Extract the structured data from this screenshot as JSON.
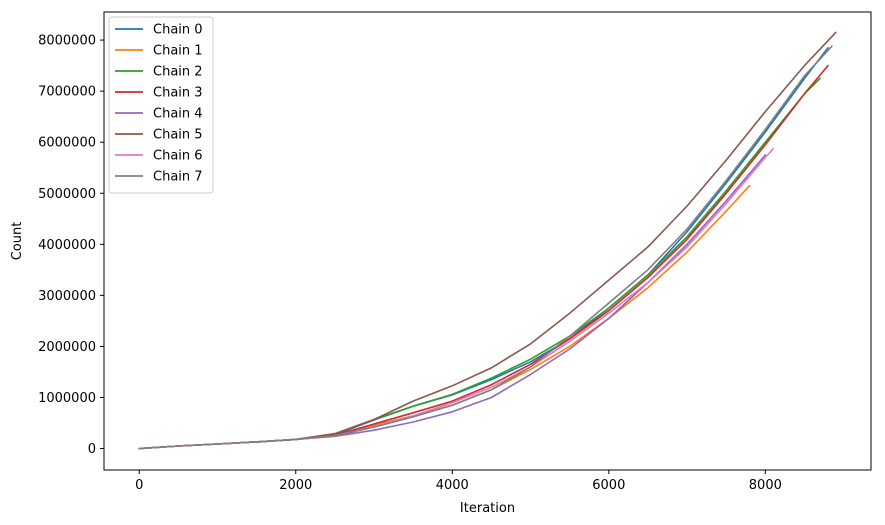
{
  "chart_data": {
    "type": "line",
    "title": "",
    "xlabel": "Iteration",
    "ylabel": "Count",
    "xlim": [
      -450,
      9350
    ],
    "ylim": [
      -420000,
      8550000
    ],
    "xticks": [
      0,
      2000,
      4000,
      6000,
      8000
    ],
    "xtick_labels": [
      "0",
      "2000",
      "4000",
      "6000",
      "8000"
    ],
    "yticks": [
      0,
      1000000,
      2000000,
      3000000,
      4000000,
      5000000,
      6000000,
      7000000,
      8000000
    ],
    "ytick_labels": [
      "0",
      "1000000",
      "2000000",
      "3000000",
      "4000000",
      "5000000",
      "6000000",
      "7000000",
      "8000000"
    ],
    "grid": false,
    "legend_position": "top-left",
    "series": [
      {
        "name": "Chain 0",
        "color": "#1f77b4",
        "x": [
          0,
          500,
          1000,
          1500,
          2000,
          2500,
          3000,
          3500,
          4000,
          4500,
          5000,
          5500,
          6000,
          6500,
          7000,
          7500,
          8000,
          8500,
          8800
        ],
        "y": [
          0,
          50000,
          90000,
          130000,
          180000,
          270000,
          560000,
          830000,
          1050000,
          1350000,
          1700000,
          2150000,
          2750000,
          3400000,
          4250000,
          5200000,
          6200000,
          7250000,
          7850000
        ]
      },
      {
        "name": "Chain 1",
        "color": "#ff7f0e",
        "x": [
          0,
          500,
          1000,
          1500,
          2000,
          2500,
          3000,
          3500,
          4000,
          4500,
          5000,
          5500,
          6000,
          6500,
          7000,
          7500,
          7800
        ],
        "y": [
          0,
          50000,
          90000,
          130000,
          180000,
          260000,
          460000,
          640000,
          850000,
          1150000,
          1550000,
          2000000,
          2550000,
          3150000,
          3850000,
          4650000,
          5150000
        ]
      },
      {
        "name": "Chain 2",
        "color": "#2ca02c",
        "x": [
          0,
          500,
          1000,
          1500,
          2000,
          2500,
          3000,
          3500,
          4000,
          4500,
          5000,
          5500,
          6000,
          6500,
          7000,
          7500,
          8000,
          8500,
          8700
        ],
        "y": [
          0,
          50000,
          90000,
          130000,
          180000,
          290000,
          570000,
          830000,
          1060000,
          1380000,
          1750000,
          2200000,
          2750000,
          3400000,
          4150000,
          5050000,
          6000000,
          6950000,
          7250000
        ]
      },
      {
        "name": "Chain 3",
        "color": "#d62728",
        "x": [
          0,
          500,
          1000,
          1500,
          2000,
          2500,
          3000,
          3500,
          4000,
          4500,
          5000,
          5500,
          6000,
          6500,
          7000,
          7500,
          8000,
          8500,
          8800
        ],
        "y": [
          0,
          50000,
          90000,
          130000,
          180000,
          260000,
          480000,
          700000,
          930000,
          1250000,
          1650000,
          2150000,
          2700000,
          3350000,
          4100000,
          5000000,
          5950000,
          6950000,
          7500000
        ]
      },
      {
        "name": "Chain 4",
        "color": "#9467bd",
        "x": [
          0,
          500,
          1000,
          1500,
          2000,
          2500,
          3000,
          3500,
          4000,
          4500,
          5000,
          5500,
          6000,
          6500,
          7000,
          7500,
          8000
        ],
        "y": [
          0,
          50000,
          90000,
          130000,
          180000,
          240000,
          360000,
          520000,
          720000,
          1000000,
          1450000,
          1950000,
          2550000,
          3250000,
          4000000,
          4850000,
          5750000
        ]
      },
      {
        "name": "Chain 5",
        "color": "#8c564b",
        "x": [
          0,
          500,
          1000,
          1500,
          2000,
          2500,
          3000,
          3500,
          4000,
          4500,
          5000,
          5500,
          6000,
          6500,
          7000,
          7500,
          8000,
          8500,
          8900
        ],
        "y": [
          0,
          50000,
          90000,
          130000,
          180000,
          290000,
          570000,
          930000,
          1230000,
          1580000,
          2050000,
          2650000,
          3300000,
          3950000,
          4750000,
          5650000,
          6600000,
          7500000,
          8150000
        ]
      },
      {
        "name": "Chain 6",
        "color": "#e377c2",
        "x": [
          0,
          500,
          1000,
          1500,
          2000,
          2500,
          3000,
          3500,
          4000,
          4500,
          5000,
          5500,
          6000,
          6500,
          7000,
          7500,
          8000,
          8100
        ],
        "y": [
          0,
          50000,
          90000,
          130000,
          180000,
          250000,
          430000,
          640000,
          900000,
          1200000,
          1600000,
          2100000,
          2650000,
          3250000,
          3950000,
          4800000,
          5700000,
          5870000
        ]
      },
      {
        "name": "Chain 7",
        "color": "#7f7f7f",
        "x": [
          0,
          500,
          1000,
          1500,
          2000,
          2500,
          3000,
          3500,
          4000,
          4500,
          5000,
          5500,
          6000,
          6500,
          7000,
          7500,
          8000,
          8500,
          8850
        ],
        "y": [
          0,
          50000,
          90000,
          130000,
          180000,
          250000,
          420000,
          620000,
          850000,
          1150000,
          1600000,
          2200000,
          2850000,
          3500000,
          4300000,
          5250000,
          6250000,
          7300000,
          7880000
        ]
      }
    ]
  }
}
